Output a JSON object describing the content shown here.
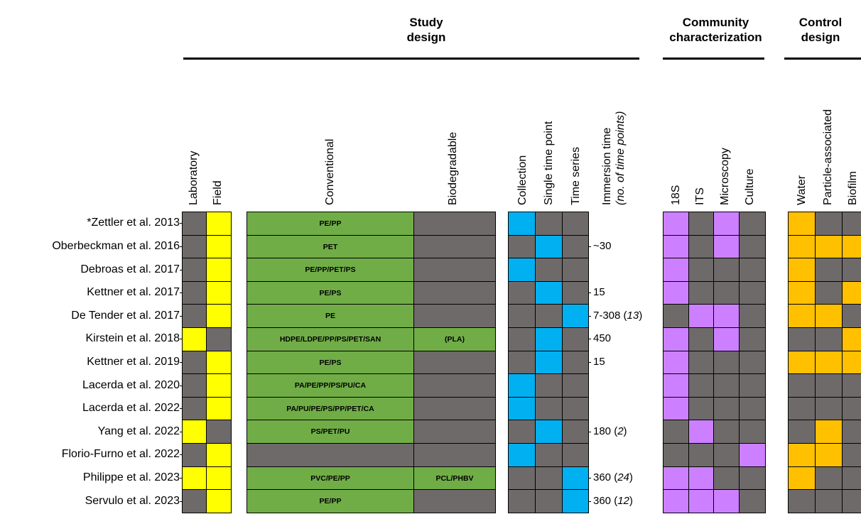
{
  "groups": [
    {
      "line1": "Study",
      "line2": "design"
    },
    {
      "line1": "Community",
      "line2": "characterization"
    },
    {
      "line1": "Control",
      "line2": "design"
    }
  ],
  "columns": {
    "laboratory": "Laboratory",
    "field": "Field",
    "conventional": "Conventional",
    "biodegradable": "Biodegradable",
    "collection": "Collection",
    "single_time_point": "Single time point",
    "time_series": "Time series",
    "immersion_line1": "Immersion time",
    "immersion_line2": "(no. of time points)",
    "s18": "18S",
    "its": "ITS",
    "microscopy": "Microscopy",
    "culture": "Culture",
    "water": "Water",
    "particle_associated": "Particle-associated",
    "biofilm": "Biofilm"
  },
  "colors": {
    "absent": "#6f6a6a",
    "setting": "#ffff00",
    "polymer": "#70ad47",
    "sampling": "#00b0f0",
    "characterization": "#cc80ff",
    "control": "#ffc000"
  },
  "rows": [
    {
      "study": "*Zettler et al. 2013",
      "setting": [
        0,
        1
      ],
      "conventional": "PE/PP",
      "biodegradable": "",
      "sampling": [
        1,
        0,
        0
      ],
      "immersion": "",
      "immersion_points": "",
      "characterization": [
        1,
        0,
        1,
        0
      ],
      "control": [
        1,
        0,
        0
      ]
    },
    {
      "study": "Oberbeckman et al. 2016",
      "setting": [
        0,
        1
      ],
      "conventional": "PET",
      "biodegradable": "",
      "sampling": [
        0,
        1,
        0
      ],
      "immersion": "~30",
      "immersion_points": "",
      "characterization": [
        1,
        0,
        1,
        0
      ],
      "control": [
        1,
        1,
        1
      ]
    },
    {
      "study": "Debroas et al. 2017",
      "setting": [
        0,
        1
      ],
      "conventional": "PE/PP/PET/PS",
      "biodegradable": "",
      "sampling": [
        1,
        0,
        0
      ],
      "immersion": "",
      "immersion_points": "",
      "characterization": [
        1,
        0,
        0,
        0
      ],
      "control": [
        1,
        0,
        0
      ]
    },
    {
      "study": "Kettner et al. 2017",
      "setting": [
        0,
        1
      ],
      "conventional": "PE/PS",
      "biodegradable": "",
      "sampling": [
        0,
        1,
        0
      ],
      "immersion": "15",
      "immersion_points": "",
      "characterization": [
        1,
        0,
        0,
        0
      ],
      "control": [
        1,
        0,
        1
      ]
    },
    {
      "study": "De Tender et al. 2017",
      "setting": [
        0,
        1
      ],
      "conventional": "PE",
      "biodegradable": "",
      "sampling": [
        0,
        0,
        1
      ],
      "immersion": "7-308",
      "immersion_points": "13",
      "characterization": [
        0,
        1,
        1,
        0
      ],
      "control": [
        1,
        1,
        0
      ]
    },
    {
      "study": "Kirstein et al. 2018",
      "setting": [
        1,
        0
      ],
      "conventional": "HDPE/LDPE/PP/PS/PET/SAN",
      "biodegradable": "(PLA)",
      "sampling": [
        0,
        1,
        0
      ],
      "immersion": "450",
      "immersion_points": "",
      "characterization": [
        1,
        0,
        1,
        0
      ],
      "control": [
        0,
        0,
        1
      ]
    },
    {
      "study": "Kettner et al. 2019",
      "setting": [
        0,
        1
      ],
      "conventional": "PE/PS",
      "biodegradable": "",
      "sampling": [
        0,
        1,
        0
      ],
      "immersion": "15",
      "immersion_points": "",
      "characterization": [
        1,
        0,
        0,
        0
      ],
      "control": [
        1,
        1,
        1
      ]
    },
    {
      "study": "Lacerda et al. 2020",
      "setting": [
        0,
        1
      ],
      "conventional": "PA/PE/PP/PS/PU/CA",
      "biodegradable": "",
      "sampling": [
        1,
        0,
        0
      ],
      "immersion": "",
      "immersion_points": "",
      "characterization": [
        1,
        0,
        0,
        0
      ],
      "control": [
        0,
        0,
        0
      ]
    },
    {
      "study": "Lacerda et al. 2022",
      "setting": [
        0,
        1
      ],
      "conventional": "PA/PU/PE/PS/PP/PET/CA",
      "biodegradable": "",
      "sampling": [
        1,
        0,
        0
      ],
      "immersion": "",
      "immersion_points": "",
      "characterization": [
        1,
        0,
        0,
        0
      ],
      "control": [
        0,
        0,
        0
      ]
    },
    {
      "study": "Yang et al. 2022",
      "setting": [
        1,
        0
      ],
      "conventional": "PS/PET/PU",
      "biodegradable": "",
      "sampling": [
        0,
        1,
        0
      ],
      "immersion": "180",
      "immersion_points": "2",
      "characterization": [
        0,
        1,
        0,
        0
      ],
      "control": [
        0,
        1,
        0
      ]
    },
    {
      "study": "Florio-Furno et al. 2022",
      "setting": [
        0,
        1
      ],
      "conventional": "",
      "biodegradable": "",
      "sampling": [
        1,
        0,
        0
      ],
      "immersion": "",
      "immersion_points": "",
      "characterization": [
        0,
        0,
        0,
        1
      ],
      "control": [
        1,
        1,
        0
      ]
    },
    {
      "study": "Philippe et al. 2023",
      "setting": [
        1,
        1
      ],
      "conventional": "PVC/PE/PP",
      "biodegradable": "PCL/PHBV",
      "sampling": [
        0,
        0,
        1
      ],
      "immersion": "360",
      "immersion_points": "24",
      "characterization": [
        1,
        1,
        0,
        0
      ],
      "control": [
        1,
        0,
        0
      ]
    },
    {
      "study": "Servulo et al. 2023",
      "setting": [
        0,
        1
      ],
      "conventional": "PE/PP",
      "biodegradable": "",
      "sampling": [
        0,
        0,
        1
      ],
      "immersion": "360",
      "immersion_points": "12",
      "characterization": [
        1,
        1,
        1,
        0
      ],
      "control": [
        0,
        0,
        0
      ]
    }
  ]
}
